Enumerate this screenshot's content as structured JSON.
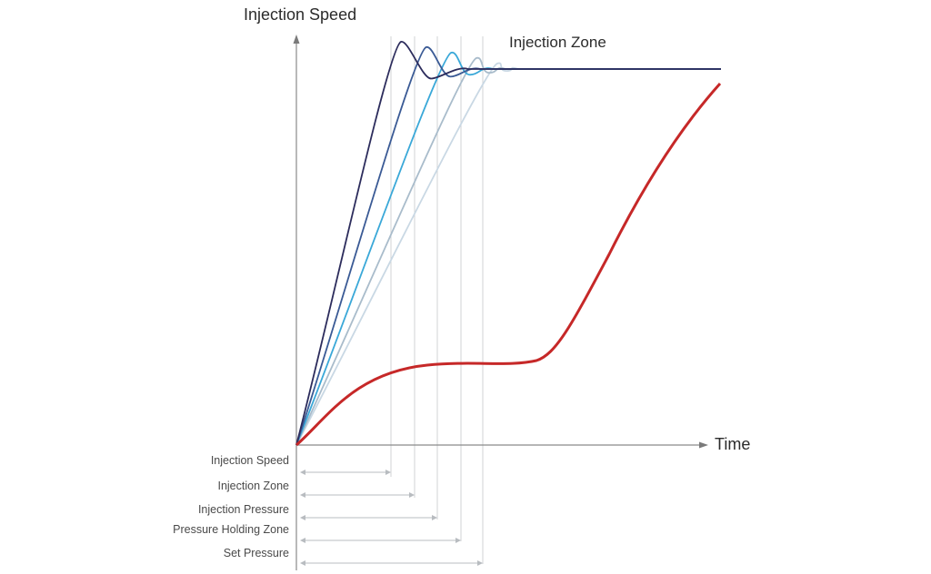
{
  "labels": {
    "y_axis": "Injection Speed",
    "x_axis": "Time",
    "zone": "Injection Zone"
  },
  "legend": [
    {
      "label": "Injection Speed",
      "end": 0.2
    },
    {
      "label": "Injection Zone",
      "end": 0.26
    },
    {
      "label": "Injection Pressure",
      "end": 0.31
    },
    {
      "label": "Pressure Holding Zone",
      "end": 0.38
    },
    {
      "label": "Set Pressure",
      "end": 0.43
    }
  ],
  "responses": [
    {
      "color": "#2c2c5c",
      "peak_time": 0.25,
      "settle_time": 0.41
    },
    {
      "color": "#3a5a95",
      "peak_time": 0.31,
      "settle_time": 0.44
    },
    {
      "color": "#3aa8d8",
      "peak_time": 0.37,
      "settle_time": 0.47
    },
    {
      "color": "#a9bccb",
      "peak_time": 0.43,
      "settle_time": 0.5
    },
    {
      "color": "#c9d8e4",
      "peak_time": 0.48,
      "settle_time": 0.53
    }
  ],
  "pressure_curve": {
    "color": "#c62828"
  }
}
